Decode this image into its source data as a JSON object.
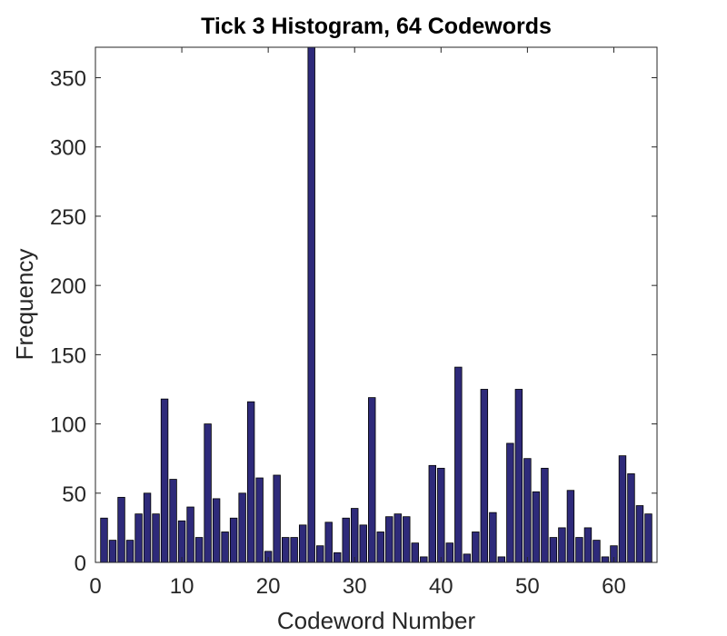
{
  "chart_data": {
    "type": "bar",
    "title": "Tick 3 Histogram, 64 Codewords",
    "xlabel": "Codeword Number",
    "ylabel": "Frequency",
    "xlim": [
      0,
      65
    ],
    "ylim": [
      0,
      372
    ],
    "xticks": [
      0,
      10,
      20,
      30,
      40,
      50,
      60
    ],
    "yticks": [
      0,
      50,
      100,
      150,
      200,
      250,
      300,
      350
    ],
    "grid": false,
    "bar_color": "#2e2a7a",
    "bar_edge_color": "#000000",
    "x": [
      1,
      2,
      3,
      4,
      5,
      6,
      7,
      8,
      9,
      10,
      11,
      12,
      13,
      14,
      15,
      16,
      17,
      18,
      19,
      20,
      21,
      22,
      23,
      24,
      25,
      26,
      27,
      28,
      29,
      30,
      31,
      32,
      33,
      34,
      35,
      36,
      37,
      38,
      39,
      40,
      41,
      42,
      43,
      44,
      45,
      46,
      47,
      48,
      49,
      50,
      51,
      52,
      53,
      54,
      55,
      56,
      57,
      58,
      59,
      60,
      61,
      62,
      63,
      64
    ],
    "values": [
      32,
      16,
      47,
      16,
      35,
      50,
      35,
      118,
      60,
      30,
      40,
      18,
      100,
      46,
      22,
      32,
      50,
      116,
      61,
      8,
      63,
      18,
      18,
      27,
      372,
      12,
      29,
      7,
      32,
      39,
      27,
      119,
      22,
      33,
      35,
      33,
      14,
      4,
      70,
      68,
      14,
      141,
      6,
      22,
      125,
      36,
      4,
      86,
      125,
      75,
      51,
      68,
      18,
      25,
      52,
      18,
      25,
      16,
      4,
      12,
      77,
      64,
      41,
      35
    ]
  }
}
